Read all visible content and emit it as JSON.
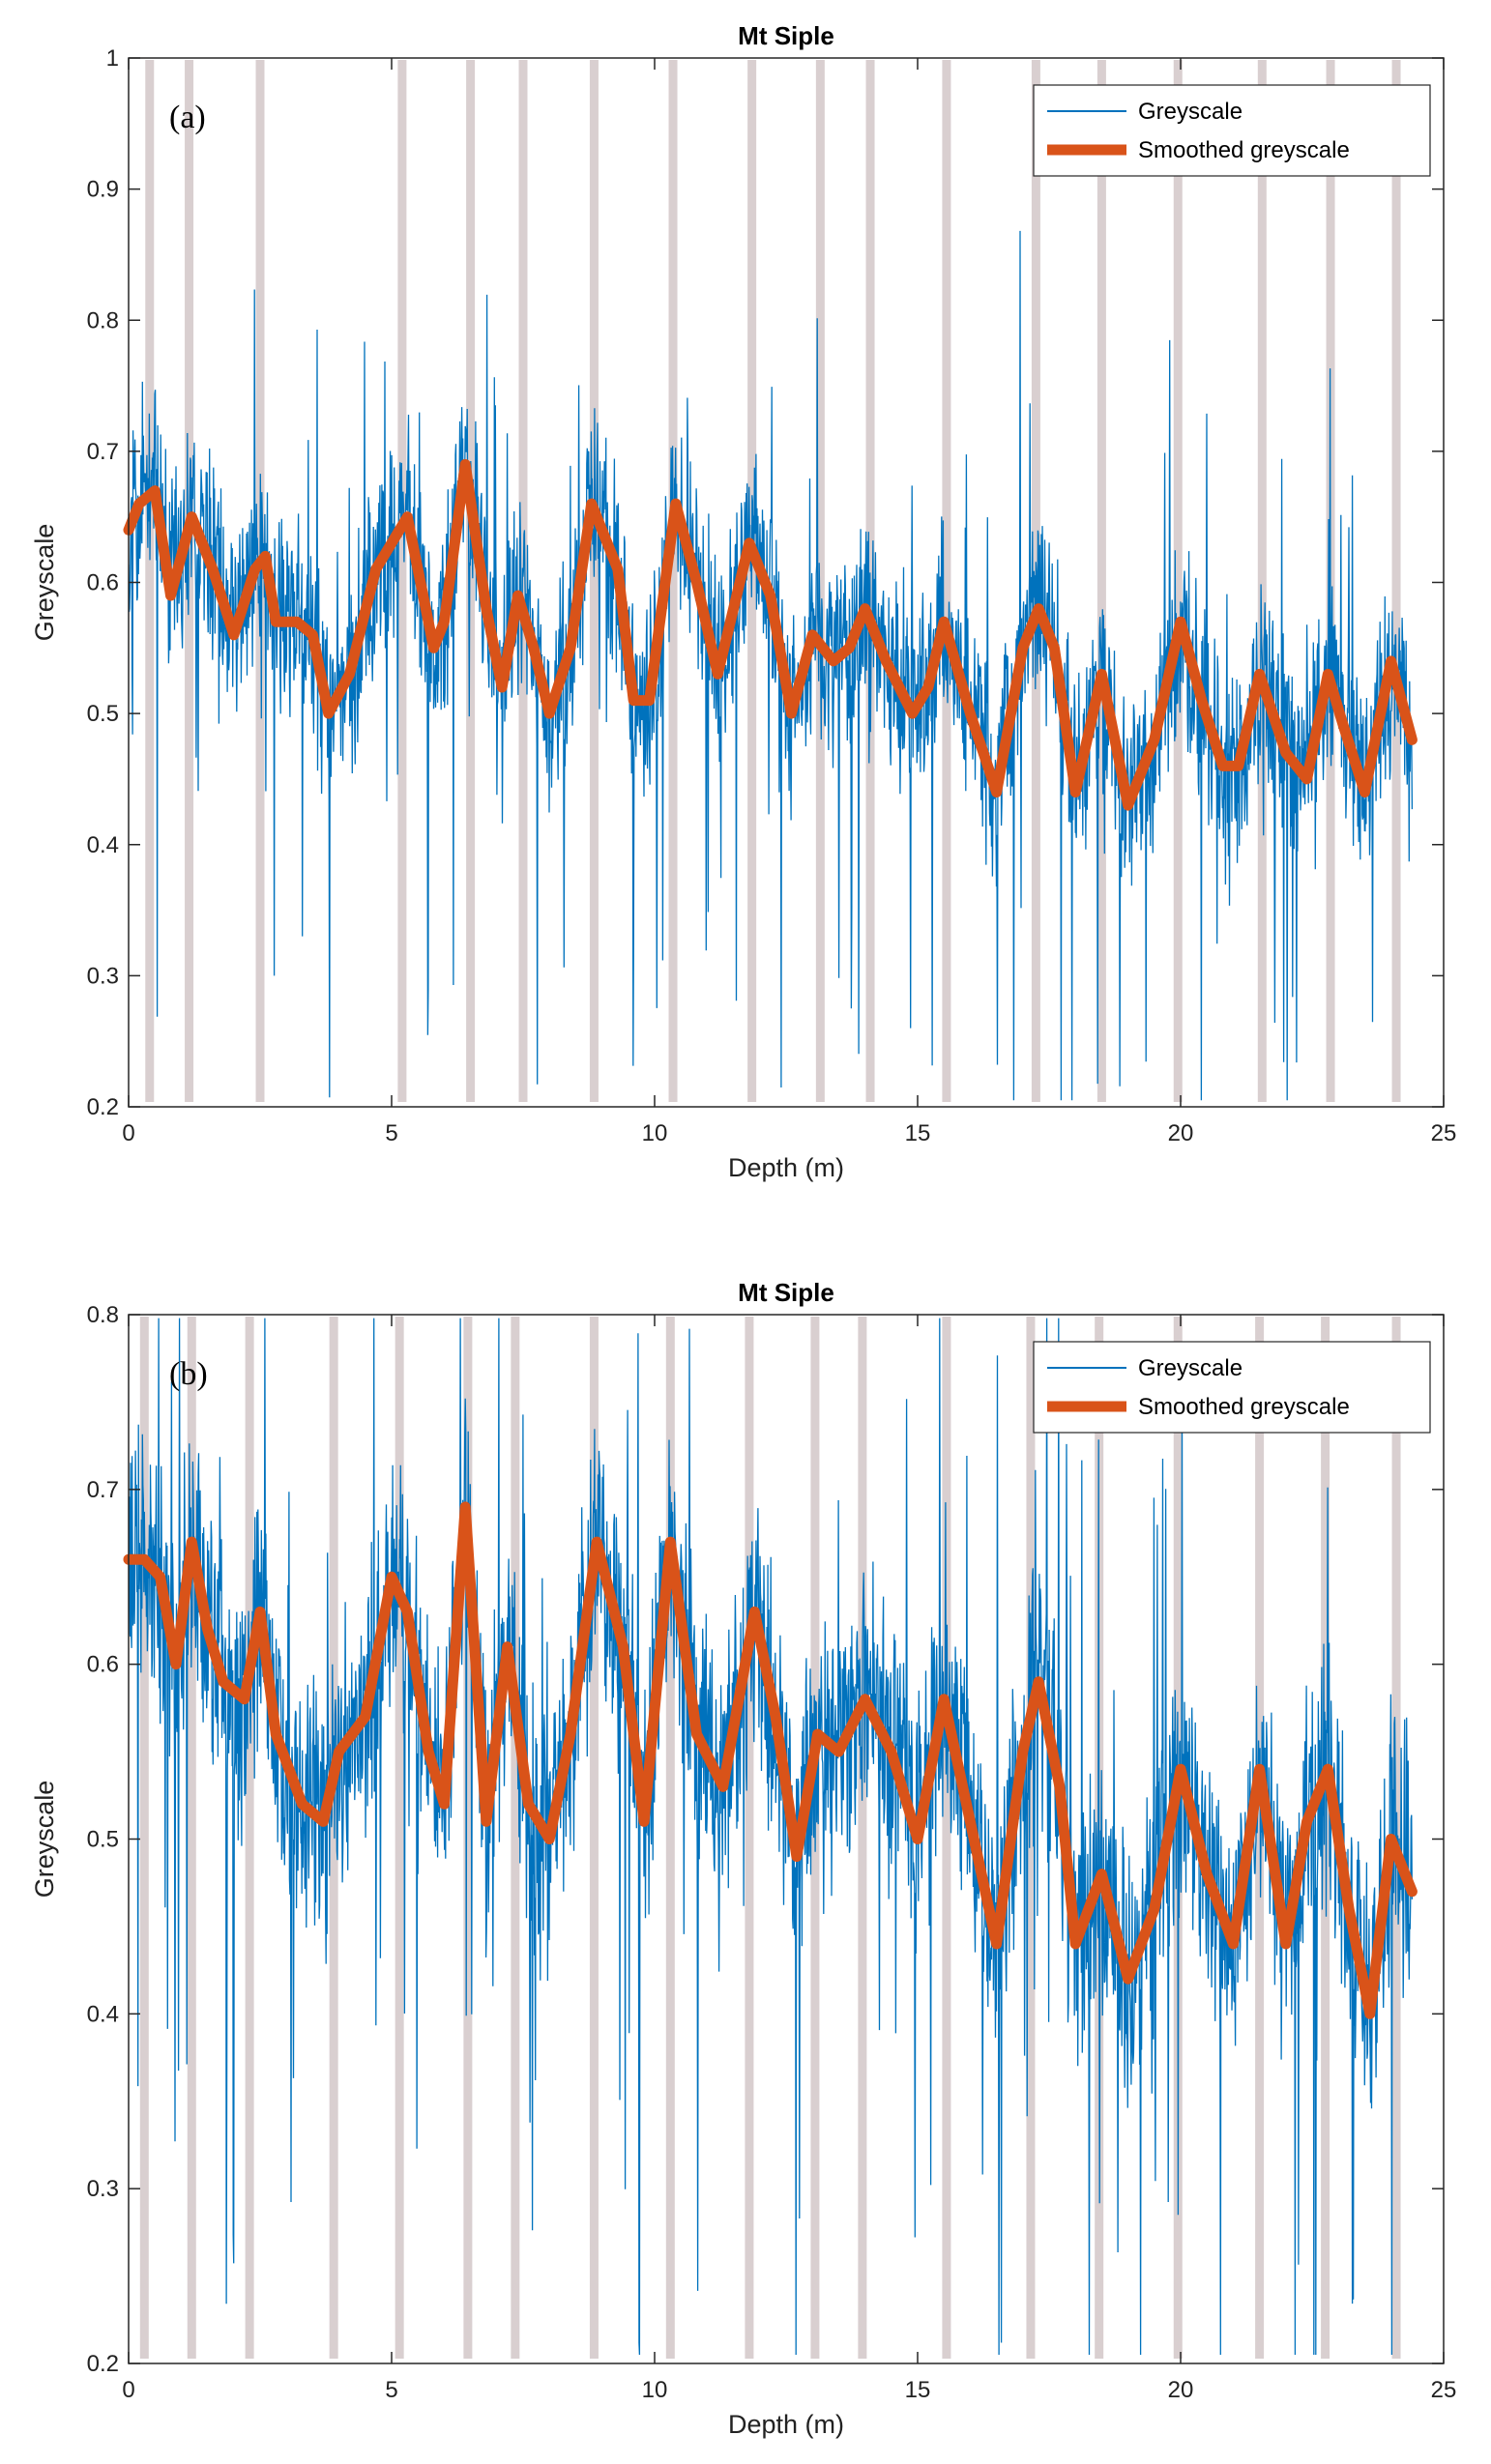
{
  "chart_data": [
    {
      "type": "line",
      "title": "Mt Siple",
      "panel_label": "(a)",
      "xlabel": "Depth (m)",
      "ylabel": "Greyscale",
      "xlim": [
        0,
        25
      ],
      "ylim": [
        0.2,
        1.0
      ],
      "xticks": [
        0,
        5,
        10,
        15,
        20,
        25
      ],
      "yticks": [
        0.2,
        0.3,
        0.4,
        0.5,
        0.6,
        0.7,
        0.8,
        0.9,
        1.0
      ],
      "grid": false,
      "legend_position": "top-right",
      "marker_depths": [
        0.4,
        1.15,
        2.5,
        5.2,
        6.5,
        7.5,
        8.85,
        10.35,
        11.85,
        13.15,
        14.1,
        15.55,
        17.25,
        18.5,
        19.95,
        21.55,
        22.85,
        24.1
      ],
      "series": [
        {
          "name": "Greyscale",
          "color": "#0072BD",
          "kind": "noisy",
          "noise_amplitude": 0.09,
          "spike_amplitude": 0.3,
          "seed": 11
        },
        {
          "name": "Smoothed greyscale",
          "color": "#D95319",
          "kind": "smooth",
          "x": [
            0,
            0.2,
            0.5,
            0.8,
            1.2,
            1.6,
            2.0,
            2.4,
            2.6,
            2.8,
            3.2,
            3.5,
            3.8,
            4.2,
            4.7,
            5.3,
            5.8,
            6.0,
            6.4,
            6.8,
            7.1,
            7.4,
            7.7,
            8.0,
            8.4,
            8.8,
            9.3,
            9.6,
            9.9,
            10.4,
            10.8,
            11.2,
            11.8,
            12.2,
            12.6,
            13.0,
            13.4,
            13.7,
            14.0,
            14.4,
            14.9,
            15.2,
            15.5,
            16.0,
            16.5,
            17.0,
            17.3,
            17.6,
            18.0,
            18.5,
            19.0,
            19.5,
            20.0,
            20.4,
            20.8,
            21.1,
            21.5,
            22.0,
            22.4,
            22.8,
            23.1,
            23.5,
            24.0,
            24.4
          ],
          "y": [
            0.64,
            0.66,
            0.67,
            0.59,
            0.65,
            0.61,
            0.56,
            0.61,
            0.62,
            0.57,
            0.57,
            0.56,
            0.5,
            0.53,
            0.61,
            0.65,
            0.55,
            0.57,
            0.69,
            0.58,
            0.52,
            0.59,
            0.55,
            0.5,
            0.55,
            0.66,
            0.61,
            0.51,
            0.51,
            0.66,
            0.6,
            0.53,
            0.63,
            0.59,
            0.5,
            0.56,
            0.54,
            0.55,
            0.58,
            0.54,
            0.5,
            0.52,
            0.57,
            0.5,
            0.44,
            0.55,
            0.58,
            0.55,
            0.44,
            0.53,
            0.43,
            0.48,
            0.57,
            0.51,
            0.46,
            0.46,
            0.53,
            0.47,
            0.45,
            0.53,
            0.49,
            0.44,
            0.54,
            0.48
          ]
        }
      ]
    },
    {
      "type": "line",
      "title": "Mt Siple",
      "panel_label": "(b)",
      "xlabel": "Depth (m)",
      "ylabel": "Greyscale",
      "xlim": [
        0,
        25
      ],
      "ylim": [
        0.2,
        0.8
      ],
      "xticks": [
        0,
        5,
        10,
        15,
        20,
        25
      ],
      "yticks": [
        0.2,
        0.3,
        0.4,
        0.5,
        0.6,
        0.7,
        0.8
      ],
      "grid": false,
      "legend_position": "top-right",
      "marker_depths": [
        0.3,
        1.2,
        2.3,
        3.9,
        5.15,
        6.45,
        7.35,
        8.85,
        10.3,
        11.8,
        13.05,
        13.95,
        15.55,
        17.15,
        18.45,
        19.95,
        21.5,
        22.75,
        24.1
      ],
      "series": [
        {
          "name": "Greyscale",
          "color": "#0072BD",
          "kind": "noisy",
          "noise_amplitude": 0.09,
          "spike_amplitude": 0.3,
          "seed": 29
        },
        {
          "name": "Smoothed greyscale",
          "color": "#D95319",
          "kind": "smooth",
          "x": [
            0,
            0.3,
            0.6,
            0.9,
            1.2,
            1.5,
            1.8,
            2.2,
            2.5,
            2.8,
            3.3,
            3.7,
            4.0,
            4.5,
            5.0,
            5.3,
            5.7,
            6.0,
            6.4,
            6.8,
            7.2,
            7.6,
            8.0,
            8.4,
            8.9,
            9.4,
            9.8,
            10.3,
            10.8,
            11.3,
            11.9,
            12.3,
            12.7,
            13.1,
            13.5,
            14.0,
            14.5,
            15.0,
            15.5,
            16.0,
            16.5,
            17.0,
            17.3,
            17.7,
            18.0,
            18.5,
            19.0,
            19.5,
            20.0,
            20.5,
            21.0,
            21.5,
            22.0,
            22.4,
            22.8,
            23.2,
            23.6,
            24.0,
            24.4
          ],
          "y": [
            0.66,
            0.66,
            0.65,
            0.6,
            0.67,
            0.62,
            0.59,
            0.58,
            0.63,
            0.56,
            0.52,
            0.51,
            0.55,
            0.57,
            0.65,
            0.63,
            0.55,
            0.52,
            0.69,
            0.51,
            0.61,
            0.52,
            0.5,
            0.56,
            0.67,
            0.61,
            0.51,
            0.67,
            0.56,
            0.53,
            0.63,
            0.57,
            0.49,
            0.56,
            0.55,
            0.58,
            0.55,
            0.5,
            0.58,
            0.51,
            0.44,
            0.55,
            0.59,
            0.53,
            0.44,
            0.48,
            0.42,
            0.46,
            0.54,
            0.48,
            0.44,
            0.54,
            0.44,
            0.51,
            0.54,
            0.46,
            0.4,
            0.5,
            0.47
          ]
        }
      ]
    }
  ]
}
